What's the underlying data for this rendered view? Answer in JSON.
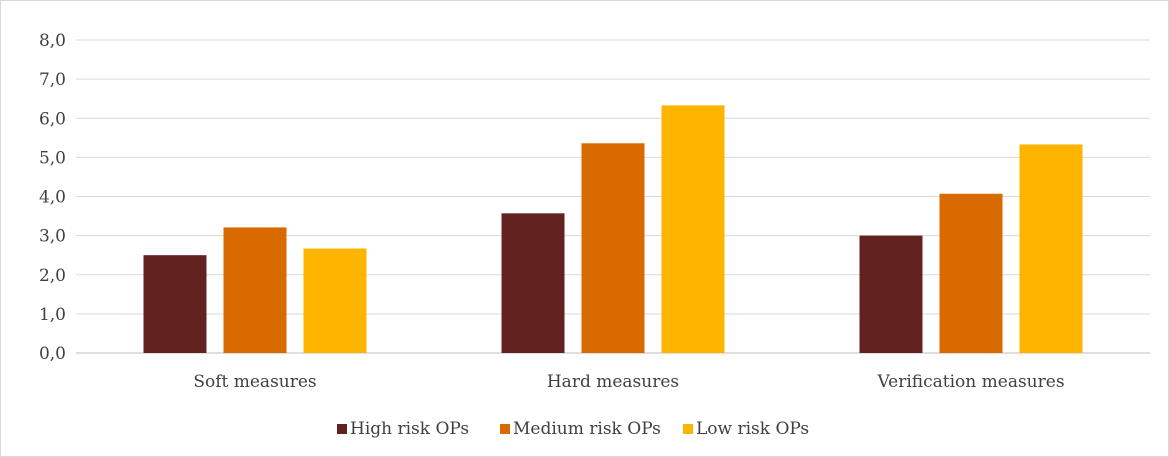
{
  "chart_data": {
    "type": "bar",
    "title": "",
    "xlabel": "",
    "ylabel": "",
    "categories": [
      "Soft measures",
      "Hard measures",
      "Verification measures"
    ],
    "series": [
      {
        "name": "High risk OPs",
        "values": [
          2.5,
          3.57,
          3.0
        ],
        "color": "#622220"
      },
      {
        "name": "Medium risk OPs",
        "values": [
          3.21,
          5.36,
          4.07
        ],
        "color": "#d86a00"
      },
      {
        "name": "Low risk OPs",
        "values": [
          2.67,
          6.33,
          5.33
        ],
        "color": "#ffb400"
      }
    ],
    "ylim": [
      0,
      8
    ],
    "yticks": [
      "0,0",
      "1,0",
      "2,0",
      "3,0",
      "4,0",
      "5,0",
      "6,0",
      "7,0",
      "8,0"
    ],
    "grid": true,
    "legend_position": "bottom"
  }
}
